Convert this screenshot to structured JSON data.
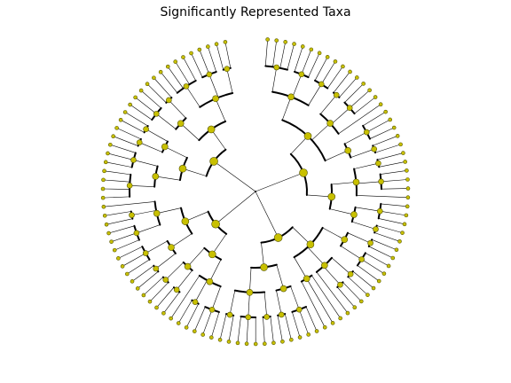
{
  "figure": {
    "title": "Significantly Represented Taxa"
  },
  "style": {
    "node_color": "#c8c000",
    "node_edge_color": "#555500",
    "edge_color": "#000000"
  },
  "tree": {
    "type": "circular-cladogram",
    "children": [
      {
        "children": [
          {
            "children": [
              {
                "children": [
                  {
                    "children": [
                      {},
                      {},
                      {},
                      {}
                    ]
                  },
                  {
                    "children": [
                      {},
                      {},
                      {}
                    ]
                  },
                  {
                    "children": [
                      {},
                      {},
                      {}
                    ]
                  }
                ]
              },
              {
                "children": [
                  {
                    "children": [
                      {},
                      {}
                    ]
                  },
                  {
                    "children": [
                      {},
                      {},
                      {}
                    ]
                  },
                  {}
                ]
              },
              {
                "children": [
                  {
                    "children": [
                      {},
                      {},
                      {}
                    ]
                  },
                  {
                    "children": [
                      {},
                      {}
                    ]
                  }
                ]
              }
            ]
          },
          {
            "children": [
              {
                "children": [
                  {
                    "children": [
                      {},
                      {}
                    ]
                  },
                  {
                    "children": [
                      {},
                      {},
                      {}
                    ]
                  },
                  {}
                ]
              },
              {
                "children": [
                  {
                    "children": [
                      {},
                      {},
                      {}
                    ]
                  },
                  {
                    "children": [
                      {},
                      {}
                    ]
                  }
                ]
              }
            ]
          }
        ]
      },
      {
        "children": [
          {
            "children": [
              {
                "children": [
                  {
                    "children": [
                      {},
                      {}
                    ]
                  },
                  {
                    "children": [
                      {},
                      {},
                      {}
                    ]
                  }
                ]
              },
              {
                "children": [
                  {
                    "children": [
                      {},
                      {}
                    ]
                  },
                  {
                    "children": [
                      {},
                      {}
                    ]
                  },
                  {}
                ]
              },
              {
                "children": [
                  {},
                  {},
                  {}
                ]
              }
            ]
          },
          {
            "children": [
              {
                "children": [
                  {
                    "children": [
                      {},
                      {},
                      {}
                    ]
                  },
                  {
                    "children": [
                      {},
                      {}
                    ]
                  }
                ]
              },
              {
                "children": [
                  {
                    "children": [
                      {},
                      {}
                    ]
                  },
                  {
                    "children": [
                      {},
                      {},
                      {}
                    ]
                  },
                  {
                    "children": [
                      {},
                      {}
                    ]
                  }
                ]
              }
            ]
          }
        ]
      },
      {
        "children": [
          {
            "children": [
              {
                "children": [
                  {
                    "children": [
                      {},
                      {},
                      {}
                    ]
                  },
                  {
                    "children": [
                      {},
                      {}
                    ]
                  },
                  {}
                ]
              },
              {
                "children": [
                  {
                    "children": [
                      {},
                      {}
                    ]
                  },
                  {
                    "children": [
                      {},
                      {}
                    ]
                  }
                ]
              }
            ]
          },
          {
            "children": [
              {
                "children": [
                  {
                    "children": [
                      {},
                      {}
                    ]
                  },
                  {
                    "children": [
                      {},
                      {},
                      {}
                    ]
                  }
                ]
              },
              {
                "children": [
                  {
                    "children": [
                      {},
                      {},
                      {}
                    ]
                  },
                  {
                    "children": [
                      {},
                      {}
                    ]
                  },
                  {}
                ]
              }
            ]
          }
        ]
      },
      {
        "children": [
          {
            "children": [
              {
                "children": [
                  {
                    "children": [
                      {},
                      {},
                      {},
                      {}
                    ]
                  },
                  {
                    "children": [
                      {},
                      {},
                      {}
                    ]
                  }
                ]
              },
              {
                "children": [
                  {
                    "children": [
                      {},
                      {}
                    ]
                  },
                  {
                    "children": [
                      {},
                      {}
                    ]
                  }
                ]
              }
            ]
          },
          {
            "children": [
              {
                "children": [
                  {
                    "children": [
                      {},
                      {},
                      {}
                    ]
                  },
                  {
                    "children": [
                      {},
                      {}
                    ]
                  }
                ]
              },
              {
                "children": [
                  {
                    "children": [
                      {},
                      {},
                      {},
                      {}
                    ]
                  },
                  {
                    "children": [
                      {},
                      {},
                      {}
                    ]
                  },
                  {
                    "children": [
                      {},
                      {}
                    ]
                  }
                ]
              }
            ]
          }
        ]
      }
    ]
  }
}
